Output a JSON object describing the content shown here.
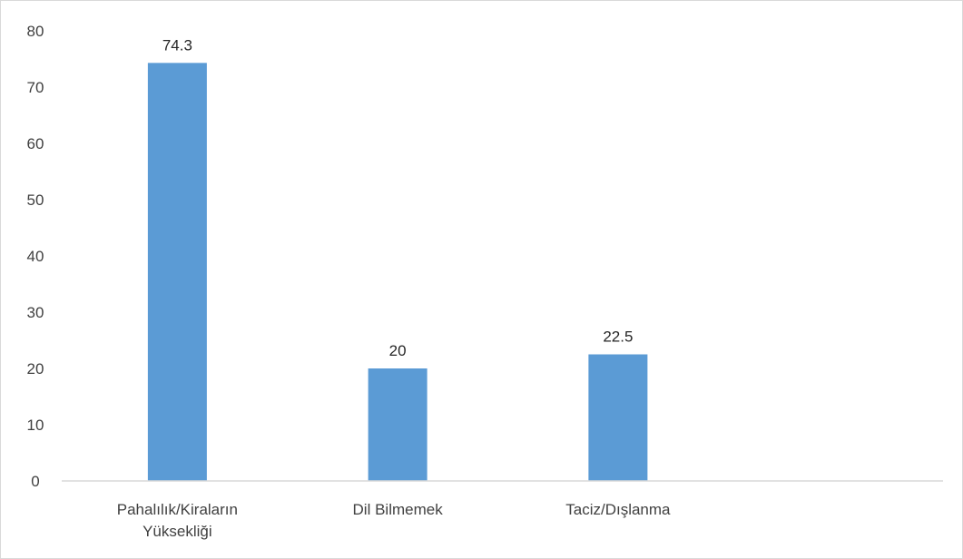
{
  "chart_data": {
    "type": "bar",
    "title": "",
    "xlabel": "",
    "ylabel": "",
    "categories": [
      [
        "Pahalılık/Kiraların",
        "Yüksekliği"
      ],
      [
        "Dil Bilmemek"
      ],
      [
        "Taciz/Dışlanma"
      ]
    ],
    "values": [
      74.3,
      20,
      22.5
    ],
    "data_labels": [
      "74.3",
      "20",
      "22.5"
    ],
    "ylim": [
      0,
      80
    ],
    "yticks": [
      0,
      10,
      20,
      30,
      40,
      50,
      60,
      70,
      80
    ],
    "grid": false,
    "legend": "none",
    "bar_color": "#5b9bd5",
    "axis_color": "#d9d9d9"
  }
}
